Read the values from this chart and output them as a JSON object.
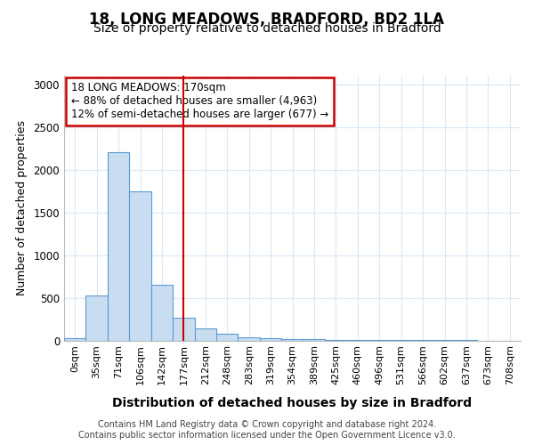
{
  "title1": "18, LONG MEADOWS, BRADFORD, BD2 1LA",
  "title2": "Size of property relative to detached houses in Bradford",
  "xlabel": "Distribution of detached houses by size in Bradford",
  "ylabel": "Number of detached properties",
  "footnote1": "Contains HM Land Registry data © Crown copyright and database right 2024.",
  "footnote2": "Contains public sector information licensed under the Open Government Licence v3.0.",
  "annotation_line1": "18 LONG MEADOWS: 170sqm",
  "annotation_line2": "← 88% of detached houses are smaller (4,963)",
  "annotation_line3": "12% of semi-detached houses are larger (677) →",
  "bar_labels": [
    "0sqm",
    "35sqm",
    "71sqm",
    "106sqm",
    "142sqm",
    "177sqm",
    "212sqm",
    "248sqm",
    "283sqm",
    "319sqm",
    "354sqm",
    "389sqm",
    "425sqm",
    "460sqm",
    "496sqm",
    "531sqm",
    "566sqm",
    "602sqm",
    "637sqm",
    "673sqm",
    "708sqm"
  ],
  "bar_values": [
    30,
    525,
    2200,
    1750,
    650,
    270,
    145,
    75,
    40,
    30,
    20,
    15,
    10,
    5,
    3,
    2,
    1,
    1,
    1,
    0,
    0
  ],
  "bar_color": "#c9ddf0",
  "bar_edge_color": "#5b9bd5",
  "reference_line_x": 5.0,
  "reference_line_color": "#cc0000",
  "ylim": [
    0,
    3100
  ],
  "yticks": [
    0,
    500,
    1000,
    1500,
    2000,
    2500,
    3000
  ],
  "bg_color": "#ffffff",
  "grid_color": "#d8e8f8",
  "annotation_box_color": "#ffffff",
  "annotation_box_edge": "#cc0000",
  "title1_fontsize": 12,
  "title2_fontsize": 10,
  "xlabel_fontsize": 10,
  "ylabel_fontsize": 9,
  "tick_fontsize": 8,
  "footnote_fontsize": 7
}
